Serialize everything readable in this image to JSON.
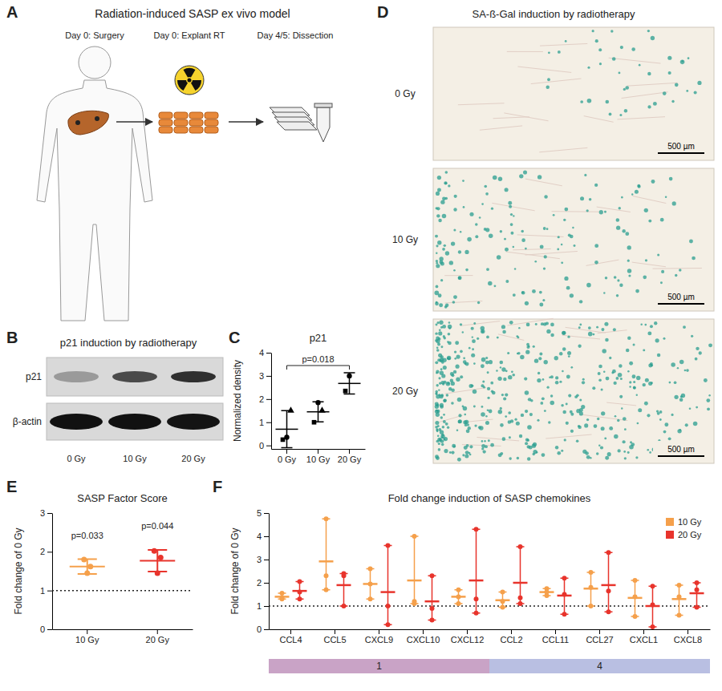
{
  "panel_a": {
    "letter": "A",
    "title": "Radiation-induced SASP ex vivo model",
    "steps": [
      "Day 0: Surgery",
      "Day 0: Explant RT",
      "Day 4/5: Dissection"
    ]
  },
  "panel_b": {
    "letter": "B",
    "title": "p21 induction by radiotherapy",
    "bands": [
      "p21",
      "β-actin"
    ],
    "lanes": [
      "0 Gy",
      "10 Gy",
      "20 Gy"
    ]
  },
  "panel_d": {
    "letter": "D",
    "title": "SA-ß-Gal induction by radiotherapy",
    "rows": [
      "0 Gy",
      "10 Gy",
      "20 Gy"
    ],
    "scale_bar": "500 µm"
  },
  "chart_data": [
    {
      "letter": "C",
      "type": "scatter",
      "title": "p21",
      "y_label": "Normalized density",
      "categories": [
        "0 Gy",
        "10 Gy",
        "20 Gy"
      ],
      "series": [
        {
          "marker": "square",
          "values": [
            0.25,
            1.0,
            2.35
          ]
        },
        {
          "marker": "circle",
          "values": [
            0.35,
            1.85,
            3.0
          ]
        },
        {
          "marker": "triangle",
          "values": [
            1.5,
            1.5,
            null
          ]
        }
      ],
      "mean": [
        0.7,
        1.45,
        2.675
      ],
      "sd": [
        0.8,
        0.43,
        0.46
      ],
      "color": "#000000",
      "ylim": [
        -0.15,
        4
      ],
      "yticks": [
        0,
        1,
        2,
        3,
        4
      ],
      "annotations": [
        {
          "text": "p=0.018",
          "from": "0 Gy",
          "to": "20 Gy"
        }
      ]
    },
    {
      "letter": "E",
      "type": "scatter",
      "title": "SASP Factor Score",
      "y_label": "Fold change of 0 Gy",
      "categories": [
        "10 Gy",
        "20 Gy"
      ],
      "colors": [
        "#f5a04b",
        "#e8342c"
      ],
      "points": [
        [
          1.8,
          1.62,
          1.45
        ],
        [
          2.02,
          1.85,
          1.45
        ]
      ],
      "values": [
        1.62,
        1.77
      ],
      "errors": [
        0.19,
        0.28
      ],
      "reference_line": 1,
      "ylim": [
        0,
        3
      ],
      "yticks": [
        0,
        1,
        2,
        3
      ],
      "annotations": [
        {
          "text": "p=0.033",
          "category": "10 Gy"
        },
        {
          "text": "p=0.044",
          "category": "20 Gy"
        }
      ]
    },
    {
      "letter": "F",
      "type": "scatter",
      "title": "Fold change induction of SASP chemokines",
      "y_label": "Fold change of 0 Gy",
      "categories": [
        "CCL4",
        "CCL5",
        "CXCL9",
        "CXCL10",
        "CXCL12",
        "CCL2",
        "CCL11",
        "CCL27",
        "CXCL1",
        "CXCL8"
      ],
      "series": [
        {
          "name": "10 Gy",
          "color": "#f5a04b",
          "values": [
            1.4,
            2.92,
            1.95,
            2.1,
            1.4,
            1.25,
            1.6,
            1.75,
            1.35,
            1.3
          ],
          "lows": [
            1.3,
            1.7,
            1.3,
            1.1,
            1.1,
            0.95,
            1.45,
            1.0,
            0.55,
            0.6
          ],
          "highs": [
            1.55,
            4.75,
            2.6,
            4.0,
            1.7,
            1.6,
            1.75,
            2.45,
            2.1,
            1.9
          ],
          "points": [
            [
              1.55,
              1.35,
              1.3
            ],
            [
              4.75,
              2.3,
              1.7
            ],
            [
              2.6,
              1.95,
              1.3
            ],
            [
              4.0,
              1.2,
              1.1
            ],
            [
              1.7,
              1.4,
              1.1
            ],
            [
              1.6,
              1.2,
              0.95
            ],
            [
              1.75,
              1.6,
              1.45
            ],
            [
              2.45,
              1.8,
              1.0
            ],
            [
              2.1,
              1.4,
              0.55
            ],
            [
              1.9,
              1.4,
              0.6
            ]
          ]
        },
        {
          "name": "20 Gy",
          "color": "#e8342c",
          "values": [
            1.65,
            1.9,
            1.6,
            1.2,
            2.1,
            2.0,
            1.45,
            1.9,
            1.0,
            1.55
          ],
          "lows": [
            1.3,
            1.0,
            0.2,
            0.4,
            0.7,
            1.1,
            0.65,
            0.75,
            0.1,
            0.95
          ],
          "highs": [
            2.05,
            2.4,
            3.6,
            2.3,
            4.3,
            3.55,
            2.2,
            3.3,
            1.85,
            2.0
          ],
          "points": [
            [
              2.05,
              1.6,
              1.3
            ],
            [
              2.3,
              2.4,
              1.0
            ],
            [
              3.6,
              1.0,
              0.2
            ],
            [
              2.3,
              0.9,
              0.4
            ],
            [
              4.3,
              1.3,
              0.7
            ],
            [
              3.55,
              1.35,
              1.1
            ],
            [
              2.2,
              1.5,
              0.65
            ],
            [
              3.3,
              1.65,
              0.75
            ],
            [
              1.85,
              1.05,
              0.1
            ],
            [
              2.0,
              1.7,
              0.95
            ]
          ]
        }
      ],
      "reference_line": 1,
      "ylim": [
        0,
        5
      ],
      "yticks": [
        0,
        1,
        2,
        3,
        4,
        5
      ],
      "legend": "top-right",
      "groups": [
        {
          "label": "1",
          "from": "CCL4",
          "to": "CXCL12",
          "color": "#c9a3c6"
        },
        {
          "label": "4",
          "from": "CCL2",
          "to": "CXCL8",
          "color": "#b9bfe2"
        }
      ]
    }
  ]
}
